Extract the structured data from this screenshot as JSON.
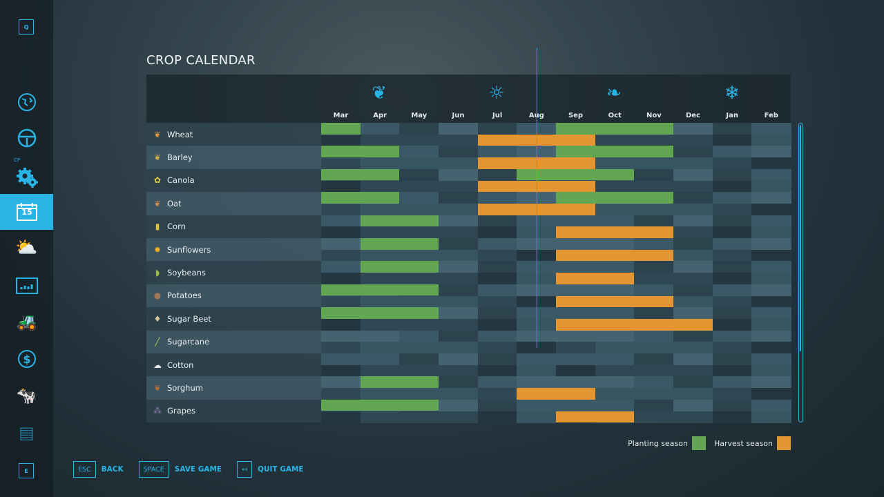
{
  "sidebar": {
    "top_key": "Q",
    "bottom_key": "E",
    "cp_label": "CP",
    "items": [
      {
        "name": "map",
        "icon": "globe-map-icon"
      },
      {
        "name": "vehicles",
        "icon": "steering-wheel-icon"
      },
      {
        "name": "courseplay",
        "icon": "gears-icon"
      },
      {
        "name": "calendar",
        "icon": "calendar-icon",
        "label": "15",
        "active": true
      },
      {
        "name": "weather",
        "icon": "weather-icon"
      },
      {
        "name": "statistics",
        "icon": "chart-icon"
      },
      {
        "name": "garage",
        "icon": "tractor-icon"
      },
      {
        "name": "finances",
        "icon": "dollar-icon"
      },
      {
        "name": "animals",
        "icon": "cow-icon"
      },
      {
        "name": "contracts",
        "icon": "papers-icon"
      }
    ]
  },
  "title": "CROP CALENDAR",
  "seasons": [
    "spring-icon",
    "summer-icon",
    "autumn-icon",
    "winter-icon"
  ],
  "months": [
    "Mar",
    "Apr",
    "May",
    "Jun",
    "Jul",
    "Aug",
    "Sep",
    "Oct",
    "Nov",
    "Dec",
    "Jan",
    "Feb"
  ],
  "current_month_position": 5.5,
  "colors": {
    "planting": "#62a552",
    "harvest": "#e29530",
    "accent": "#2ab4e6"
  },
  "crops": [
    {
      "name": "Wheat",
      "icon": "wheat-icon",
      "glyph": "❦",
      "color": "#e0a040",
      "planting": [
        [
          0,
          1
        ],
        [
          6,
          9
        ]
      ],
      "harvest": [
        [
          4,
          7
        ]
      ]
    },
    {
      "name": "Barley",
      "icon": "barley-icon",
      "glyph": "❦",
      "color": "#d8b050",
      "planting": [
        [
          0,
          2
        ],
        [
          6,
          9
        ]
      ],
      "harvest": [
        [
          4,
          7
        ]
      ]
    },
    {
      "name": "Canola",
      "icon": "canola-icon",
      "glyph": "✿",
      "color": "#e8d040",
      "planting": [
        [
          0,
          2
        ],
        [
          5,
          8
        ]
      ],
      "harvest": [
        [
          4,
          7
        ]
      ]
    },
    {
      "name": "Oat",
      "icon": "oat-icon",
      "glyph": "❦",
      "color": "#c89050",
      "planting": [
        [
          0,
          2
        ],
        [
          6,
          9
        ]
      ],
      "harvest": [
        [
          4,
          7
        ]
      ]
    },
    {
      "name": "Corn",
      "icon": "corn-icon",
      "glyph": "▮",
      "color": "#d8c040",
      "planting": [
        [
          1,
          3
        ]
      ],
      "harvest": [
        [
          6,
          9
        ]
      ]
    },
    {
      "name": "Sunflowers",
      "icon": "sunflower-icon",
      "glyph": "✹",
      "color": "#f0b020",
      "planting": [
        [
          1,
          3
        ]
      ],
      "harvest": [
        [
          6,
          9
        ]
      ]
    },
    {
      "name": "Soybeans",
      "icon": "soybean-icon",
      "glyph": "◗",
      "color": "#9cbc50",
      "planting": [
        [
          1,
          3
        ]
      ],
      "harvest": [
        [
          6,
          8
        ]
      ]
    },
    {
      "name": "Potatoes",
      "icon": "potato-icon",
      "glyph": "●",
      "color": "#a07858",
      "planting": [
        [
          0,
          3
        ]
      ],
      "harvest": [
        [
          6,
          9
        ]
      ]
    },
    {
      "name": "Sugar Beet",
      "icon": "sugar-beet-icon",
      "glyph": "♦",
      "color": "#d8c8a0",
      "planting": [
        [
          0,
          3
        ]
      ],
      "harvest": [
        [
          6,
          10
        ]
      ]
    },
    {
      "name": "Sugarcane",
      "icon": "sugarcane-icon",
      "glyph": "╱",
      "color": "#a8c850",
      "planting": [],
      "harvest": []
    },
    {
      "name": "Cotton",
      "icon": "cotton-icon",
      "glyph": "☁",
      "color": "#e8e8e8",
      "planting": [],
      "harvest": []
    },
    {
      "name": "Sorghum",
      "icon": "sorghum-icon",
      "glyph": "❦",
      "color": "#b87038",
      "planting": [
        [
          1,
          3
        ]
      ],
      "harvest": [
        [
          5,
          7
        ]
      ]
    },
    {
      "name": "Grapes",
      "icon": "grapes-icon",
      "glyph": "⁂",
      "color": "#9878b8",
      "planting": [
        [
          0,
          3
        ]
      ],
      "harvest": [
        [
          6,
          8
        ]
      ]
    }
  ],
  "legend": {
    "planting": "Planting season",
    "harvest": "Harvest season"
  },
  "footer": [
    {
      "key": "ESC",
      "label": "BACK"
    },
    {
      "key": "SPACE",
      "label": "SAVE GAME"
    },
    {
      "key": "↤",
      "label": "QUIT GAME"
    }
  ]
}
